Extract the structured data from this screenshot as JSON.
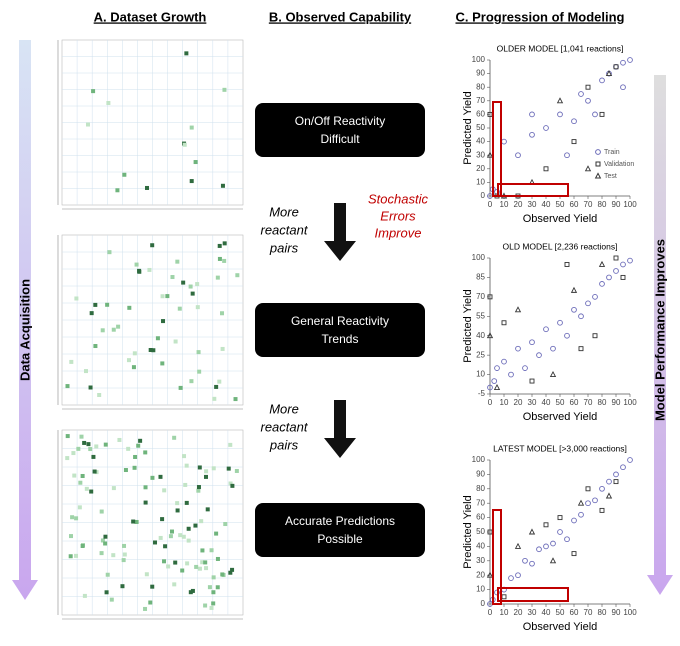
{
  "columns": [
    "A. Dataset Growth",
    "B. Observed Capability",
    "C. Progression of Modeling"
  ],
  "left_label": "Data Acquisition",
  "right_label": "Model Performance Improves",
  "boxes": [
    [
      "On/Off Reactivity",
      "Difficult"
    ],
    [
      "General Reactivity",
      "Trends"
    ],
    [
      "Accurate Predictions",
      "Possible"
    ]
  ],
  "arrow_labels": [
    [
      "More",
      "reactant",
      "pairs"
    ],
    [
      "More",
      "reactant",
      "pairs"
    ]
  ],
  "side_note": [
    "Stochastic",
    "Errors",
    "Improve"
  ],
  "chart_data": [
    {
      "type": "scatter",
      "title": "OLDER MODEL [1,041 reactions]",
      "x_label": "Observed Yield",
      "y_label": "Predicted Yield",
      "xlim": [
        0,
        100
      ],
      "ylim": [
        0,
        100
      ],
      "xticks": [
        0,
        10,
        20,
        30,
        40,
        50,
        60,
        70,
        80,
        90,
        100
      ],
      "yticks": [
        0,
        10,
        20,
        30,
        40,
        50,
        60,
        70,
        80,
        90,
        100
      ],
      "series": [
        {
          "name": "Train",
          "color": "#6a6ab8",
          "x": [
            0,
            2,
            5,
            10,
            20,
            30,
            40,
            50,
            60,
            70,
            80,
            85,
            90,
            95,
            100,
            95,
            30,
            55,
            65,
            75
          ],
          "values": [
            0,
            5,
            3,
            40,
            30,
            45,
            50,
            60,
            55,
            70,
            85,
            90,
            95,
            98,
            100,
            80,
            60,
            30,
            75,
            60
          ]
        },
        {
          "name": "Validation",
          "color": "#333333",
          "x": [
            0,
            5,
            40,
            60,
            80,
            90,
            20,
            70
          ],
          "values": [
            60,
            0,
            20,
            40,
            60,
            95,
            0,
            80
          ]
        },
        {
          "name": "Test",
          "color": "#333333",
          "x": [
            0,
            10,
            50,
            70,
            85,
            30
          ],
          "values": [
            30,
            0,
            70,
            20,
            90,
            10
          ]
        }
      ]
    },
    {
      "type": "scatter",
      "title": "OLD MODEL [2,236 reactions]",
      "x_label": "Observed Yield",
      "y_label": "Predicted Yield",
      "xlim": [
        0,
        100
      ],
      "ylim": [
        -5,
        100
      ],
      "xticks": [
        0,
        10,
        20,
        30,
        40,
        50,
        60,
        70,
        80,
        90,
        100
      ],
      "yticks": [
        -5,
        10,
        25,
        40,
        55,
        70,
        85,
        100
      ],
      "series": [
        {
          "color": "#6a6ab8",
          "x": [
            0,
            3,
            5,
            10,
            15,
            20,
            30,
            35,
            40,
            50,
            55,
            60,
            65,
            70,
            75,
            80,
            85,
            90,
            95,
            100,
            45,
            25
          ],
          "values": [
            0,
            5,
            15,
            20,
            10,
            30,
            35,
            25,
            45,
            50,
            40,
            60,
            55,
            65,
            70,
            80,
            85,
            90,
            95,
            98,
            30,
            15
          ]
        },
        {
          "color": "#333333",
          "x": [
            0,
            30,
            55,
            75,
            90,
            95,
            65,
            10
          ],
          "values": [
            70,
            5,
            95,
            40,
            100,
            85,
            30,
            50
          ]
        },
        {
          "color": "#333333",
          "x": [
            0,
            20,
            45,
            80,
            60,
            5
          ],
          "values": [
            40,
            60,
            10,
            95,
            75,
            0
          ]
        }
      ]
    },
    {
      "type": "scatter",
      "title": "LATEST MODEL [>3,000 reactions]",
      "x_label": "Observed Yield",
      "y_label": "Predicted Yield",
      "xlim": [
        0,
        100
      ],
      "ylim": [
        0,
        100
      ],
      "xticks": [
        0,
        10,
        20,
        30,
        40,
        50,
        60,
        70,
        80,
        90,
        100
      ],
      "yticks": [
        0,
        10,
        20,
        30,
        40,
        50,
        60,
        70,
        80,
        90,
        100
      ],
      "series": [
        {
          "color": "#6a6ab8",
          "x": [
            0,
            2,
            5,
            10,
            20,
            25,
            30,
            40,
            45,
            50,
            60,
            65,
            70,
            75,
            80,
            85,
            90,
            95,
            100,
            55,
            35,
            15
          ],
          "values": [
            0,
            3,
            8,
            10,
            20,
            30,
            28,
            40,
            42,
            50,
            58,
            62,
            70,
            72,
            80,
            85,
            90,
            95,
            100,
            45,
            38,
            18
          ]
        },
        {
          "color": "#333333",
          "x": [
            0,
            40,
            60,
            70,
            90,
            50,
            80,
            10
          ],
          "values": [
            50,
            55,
            35,
            80,
            85,
            60,
            65,
            5
          ]
        },
        {
          "color": "#333333",
          "x": [
            0,
            20,
            65,
            85,
            45,
            30
          ],
          "values": [
            20,
            40,
            70,
            75,
            30,
            50
          ]
        }
      ]
    }
  ]
}
